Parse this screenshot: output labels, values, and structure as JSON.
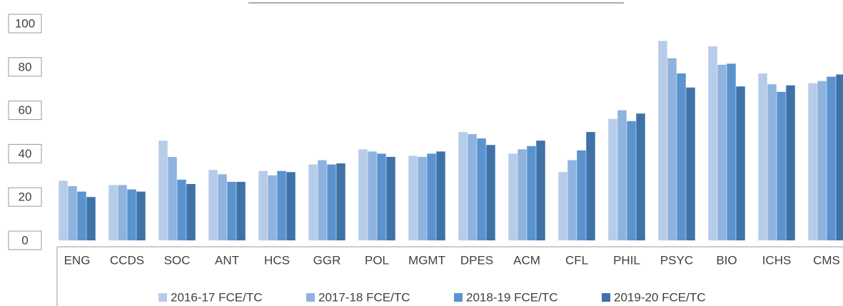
{
  "chart_data": {
    "type": "bar",
    "categories": [
      "ENG",
      "CCDS",
      "SOC",
      "ANT",
      "HCS",
      "GGR",
      "POL",
      "MGMT",
      "DPES",
      "ACM",
      "CFL",
      "PHIL",
      "PSYC",
      "BIO",
      "ICHS",
      "CMS"
    ],
    "series": [
      {
        "name": "2016-17 FCE/TC",
        "color": "#b7cce9",
        "values": [
          27.5,
          25.5,
          46,
          32.5,
          32,
          35,
          42,
          39,
          50,
          40,
          31.5,
          56,
          92,
          89.5,
          77,
          72.5
        ]
      },
      {
        "name": "2017-18 FCE/TC",
        "color": "#8fb3df",
        "values": [
          25,
          25.5,
          38.5,
          30.5,
          30,
          37,
          41,
          38.5,
          49,
          42,
          37,
          60,
          84,
          81,
          72,
          73.5
        ]
      },
      {
        "name": "2018-19 FCE/TC",
        "color": "#5b93cf",
        "values": [
          22.5,
          23.5,
          28,
          27,
          32,
          35,
          40,
          40,
          47,
          43.5,
          41.5,
          55,
          77,
          81.5,
          68.5,
          75.5
        ]
      },
      {
        "name": "2019-20 FCE/TC",
        "color": "#3f73a8",
        "values": [
          20,
          22.5,
          26,
          27,
          31.5,
          35.5,
          38.5,
          41,
          44,
          46,
          50,
          58.5,
          70.5,
          71,
          71.5,
          76.5
        ]
      }
    ],
    "ylim": [
      0,
      100
    ],
    "yticks": [
      0,
      20,
      40,
      60,
      80,
      100
    ],
    "grid": false,
    "legend": "bottom"
  }
}
